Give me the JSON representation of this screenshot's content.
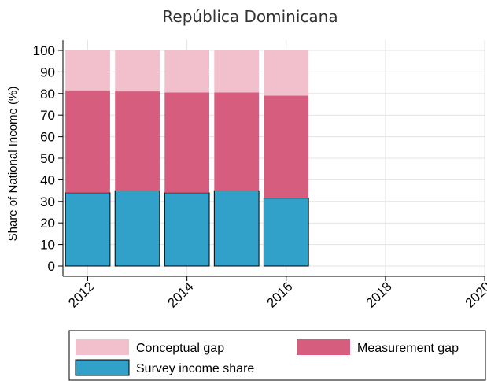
{
  "chart_data": {
    "type": "bar",
    "stacked": true,
    "title": "República Dominicana",
    "ylabel": "Share of National Income (%)",
    "xlabel": "",
    "x": [
      2012,
      2013,
      2014,
      2015,
      2016
    ],
    "xlim": [
      2011.5,
      2020
    ],
    "ylim": [
      0,
      100
    ],
    "xticks": [
      "2012",
      "2014",
      "2016",
      "2018",
      "2020"
    ],
    "yticks": [
      "0",
      "10",
      "20",
      "30",
      "40",
      "50",
      "60",
      "70",
      "80",
      "90",
      "100"
    ],
    "grid": true,
    "legend_position": "bottom",
    "series": [
      {
        "name": "Survey income share",
        "color": "#31a1c9",
        "values": [
          34,
          35,
          34,
          35,
          31.5
        ]
      },
      {
        "name": "Measurement gap",
        "color": "#d65d7d",
        "values": [
          47.5,
          46,
          46.5,
          45.5,
          47.5
        ]
      },
      {
        "name": "Conceptual gap",
        "color": "#f2c0cd",
        "values": [
          18.5,
          19,
          19.5,
          19.5,
          21
        ]
      }
    ],
    "legend_order": [
      "Conceptual gap",
      "Measurement gap",
      "Survey income share"
    ]
  }
}
